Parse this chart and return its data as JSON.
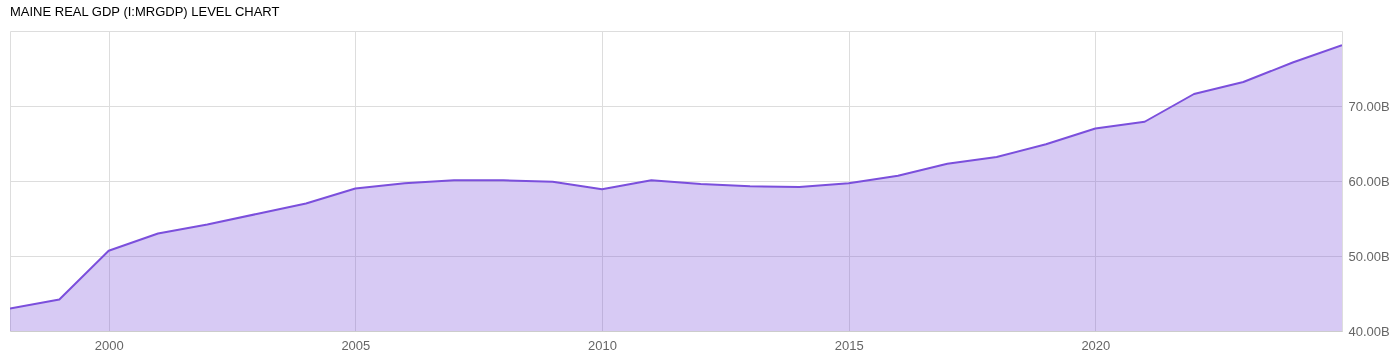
{
  "chart_data": {
    "type": "area",
    "title": "MAINE REAL GDP (I:MRGDP) LEVEL CHART",
    "x": [
      1998,
      1999,
      2000,
      2001,
      2002,
      2003,
      2004,
      2005,
      2006,
      2007,
      2008,
      2009,
      2010,
      2011,
      2012,
      2013,
      2014,
      2015,
      2016,
      2017,
      2018,
      2019,
      2020,
      2021,
      2022,
      2023,
      2024,
      2025
    ],
    "series": [
      {
        "color": "#7b4fdc",
        "values": [
          43.0,
          44.2,
          50.7,
          53.0,
          54.2,
          55.6,
          57.0,
          59.0,
          59.7,
          60.1,
          60.1,
          59.9,
          58.9,
          60.1,
          59.6,
          59.3,
          59.2,
          59.7,
          60.7,
          62.3,
          63.2,
          64.9,
          67.0,
          67.9,
          71.6,
          73.2,
          75.8,
          78.1
        ]
      }
    ],
    "xlim": [
      1998,
      2025
    ],
    "xticks": [
      2000,
      2005,
      2010,
      2015,
      2020
    ],
    "ylim": [
      40,
      80
    ],
    "yticks": [
      {
        "value": 40,
        "label": "40.00B"
      },
      {
        "value": 50,
        "label": "50.00B"
      },
      {
        "value": 60,
        "label": "60.00B"
      },
      {
        "value": 70,
        "label": "70.00B"
      }
    ],
    "grid": true
  }
}
